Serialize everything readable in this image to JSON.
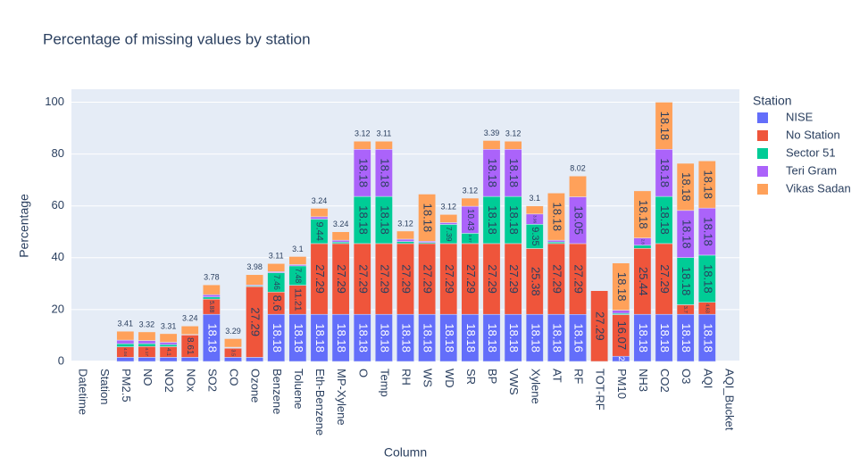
{
  "chart_data": {
    "type": "bar",
    "stacked": true,
    "title": "Percentage of missing values by station",
    "x_label": "Column",
    "y_label": "Percentage",
    "legend_title": "Station",
    "categories": [
      "Datetime",
      "Station",
      "PM2.5",
      "NO",
      "NO2",
      "NOx",
      "SO2",
      "CO",
      "Ozone",
      "Benzene",
      "Toluene",
      "Eth-Benzene",
      "MP-Xylene",
      "O",
      "Temp",
      "RH",
      "WS",
      "WD",
      "SR",
      "BP",
      "VWS",
      "Xylene",
      "AT",
      "RF",
      "TOT-RF",
      "PM10",
      "NH3",
      "CO2",
      "O3",
      "AQI",
      "AQI_Bucket"
    ],
    "series": [
      {
        "name": "NISE",
        "color": "#636efa",
        "values": [
          0,
          0,
          1.6,
          1.6,
          1.6,
          1.6,
          18.18,
          1.6,
          1.6,
          18.18,
          18.18,
          18.18,
          18.18,
          18.18,
          18.18,
          18.18,
          18.18,
          18.18,
          18.18,
          18.18,
          18.18,
          18.18,
          18.18,
          18.16,
          0,
          2,
          18.18,
          18.18,
          18.18,
          18.18,
          0
        ]
      },
      {
        "name": "No Station",
        "color": "#ef553b",
        "values": [
          0,
          0,
          4.04,
          4.17,
          4.1,
          8.61,
          5.88,
          3.5,
          27.29,
          8.6,
          11.21,
          27.29,
          27.29,
          27.29,
          27.29,
          27.29,
          27.29,
          27.29,
          27.29,
          27.29,
          27.29,
          25.38,
          27.29,
          27.29,
          27.29,
          16.07,
          25.44,
          27.29,
          3.7,
          4.63,
          0
        ]
      },
      {
        "name": "Sector 51",
        "color": "#00cc96",
        "values": [
          0,
          0,
          1.2,
          1.1,
          0.8,
          0.1,
          0.8,
          0.2,
          0.3,
          7.46,
          7.48,
          9.44,
          0.6,
          18.18,
          18.18,
          0.8,
          0.4,
          7.39,
          3.97,
          18.18,
          18.18,
          9.35,
          0.6,
          0,
          0,
          0.5,
          1.2,
          18.18,
          18.18,
          18.18,
          0
        ]
      },
      {
        "name": "Teri Gram",
        "color": "#ab63fa",
        "values": [
          0,
          0,
          1.4,
          1.2,
          0.9,
          0.1,
          0.9,
          0.2,
          0.3,
          0.4,
          0.5,
          0.9,
          0.7,
          18.18,
          18.18,
          0.9,
          0.5,
          0.7,
          10.43,
          18.18,
          18.18,
          3.96,
          0.7,
          18.05,
          0,
          1.2,
          2.8,
          18.18,
          18.18,
          18.18,
          0
        ]
      },
      {
        "name": "Vikas Sadan",
        "color": "#FFA15A",
        "values": [
          0,
          0,
          3.41,
          3.32,
          3.31,
          3.24,
          3.78,
          3.29,
          3.98,
          3.11,
          3.1,
          3.24,
          3.24,
          3.12,
          3.11,
          3.12,
          18.18,
          3.12,
          3.12,
          3.39,
          3.12,
          3.1,
          18.18,
          8.02,
          0,
          18.18,
          18.18,
          18.18,
          18.18,
          18.18,
          0
        ]
      }
    ],
    "ylim": [
      0,
      105
    ],
    "yticks": [
      0,
      20,
      40,
      60,
      80,
      100
    ],
    "grid": true
  }
}
